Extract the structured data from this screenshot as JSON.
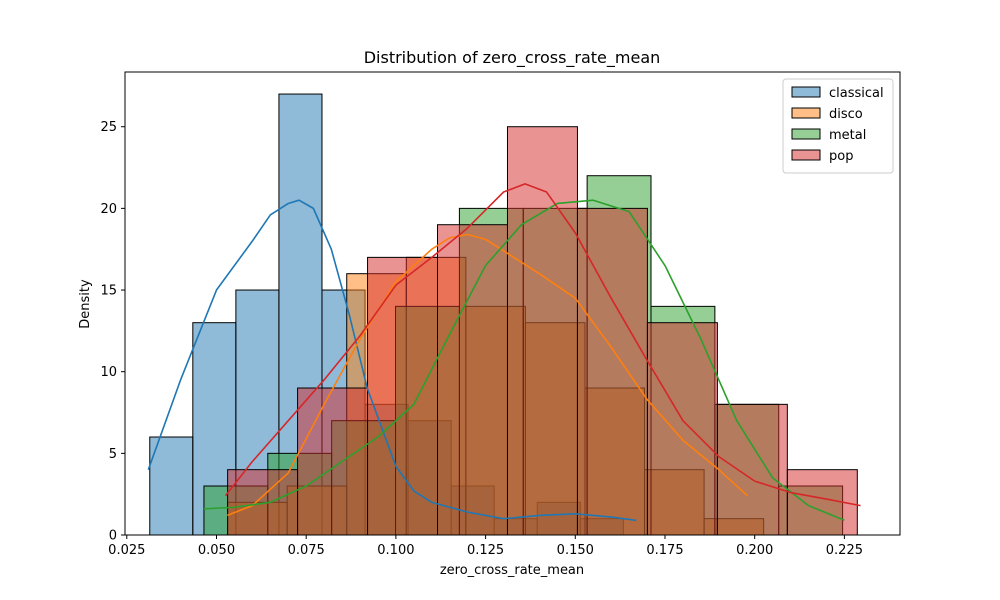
{
  "chart_data": {
    "type": "histogram",
    "title": "Distribution of zero_cross_rate_mean",
    "xlabel": "zero_cross_rate_mean",
    "ylabel": "Density",
    "xlim": [
      0.0245,
      0.2405
    ],
    "ylim": [
      0,
      28.35
    ],
    "xticks": [
      0.025,
      0.05,
      0.075,
      0.1,
      0.125,
      0.15,
      0.175,
      0.2,
      0.225
    ],
    "xtick_labels": [
      "0.025",
      "0.050",
      "0.075",
      "0.100",
      "0.125",
      "0.150",
      "0.175",
      "0.200",
      "0.225"
    ],
    "yticks": [
      0,
      5,
      10,
      15,
      20,
      25
    ],
    "ytick_labels": [
      "0",
      "5",
      "10",
      "15",
      "20",
      "25"
    ],
    "grid": false,
    "legend": "top-right",
    "series": [
      {
        "name": "classical",
        "color": "#1f77b4",
        "bin_edges": [
          0.0314,
          0.0434,
          0.0554,
          0.0674,
          0.0794,
          0.0914,
          0.1034,
          0.1154,
          0.1274,
          0.1394,
          0.1514,
          0.1634
        ],
        "counts": [
          6,
          13,
          15,
          27,
          15,
          8,
          7,
          3,
          1,
          2,
          1
        ],
        "kde": {
          "x": [
            0.031,
            0.04,
            0.05,
            0.06,
            0.065,
            0.07,
            0.073,
            0.077,
            0.082,
            0.087,
            0.092,
            0.1,
            0.105,
            0.11,
            0.12,
            0.13,
            0.14,
            0.15,
            0.16,
            0.167
          ],
          "y": [
            4.0,
            9.5,
            15.0,
            18.0,
            19.6,
            20.3,
            20.5,
            20.0,
            17.5,
            13.5,
            9.0,
            4.2,
            2.7,
            2.0,
            1.4,
            1.0,
            1.2,
            1.3,
            1.1,
            0.9
          ]
        }
      },
      {
        "name": "disco",
        "color": "#ff7f0e",
        "bin_edges": [
          0.0531,
          0.0697,
          0.0863,
          0.1029,
          0.1195,
          0.1361,
          0.1527,
          0.1693,
          0.1859,
          0.2025
        ],
        "counts": [
          2,
          3,
          16,
          17,
          14,
          13,
          9,
          4,
          1
        ],
        "kde": {
          "x": [
            0.053,
            0.06,
            0.07,
            0.08,
            0.09,
            0.1,
            0.11,
            0.115,
            0.12,
            0.125,
            0.13,
            0.14,
            0.15,
            0.16,
            0.17,
            0.18,
            0.19,
            0.198
          ],
          "y": [
            1.2,
            1.8,
            3.8,
            8.0,
            12.0,
            15.5,
            17.5,
            18.2,
            18.4,
            18.1,
            17.4,
            16.0,
            14.5,
            11.5,
            8.3,
            5.8,
            4.0,
            2.4
          ]
        }
      },
      {
        "name": "metal",
        "color": "#2ca02c",
        "bin_edges": [
          0.0465,
          0.0643,
          0.0821,
          0.0999,
          0.1177,
          0.1355,
          0.1533,
          0.1711,
          0.1889,
          0.2067,
          0.2245
        ],
        "counts": [
          3,
          5,
          7,
          14,
          20,
          20,
          22,
          14,
          8,
          3
        ],
        "kde": {
          "x": [
            0.0465,
            0.055,
            0.065,
            0.075,
            0.085,
            0.095,
            0.105,
            0.115,
            0.125,
            0.135,
            0.145,
            0.155,
            0.165,
            0.175,
            0.185,
            0.195,
            0.205,
            0.215,
            0.225
          ],
          "y": [
            1.6,
            1.7,
            2.0,
            3.0,
            4.5,
            6.0,
            8.0,
            12.3,
            16.5,
            19.0,
            20.3,
            20.5,
            19.8,
            16.5,
            12.0,
            7.0,
            3.5,
            1.8,
            0.9
          ]
        }
      },
      {
        "name": "pop",
        "color": "#d62728",
        "bin_edges": [
          0.0531,
          0.0726,
          0.0921,
          0.1116,
          0.1311,
          0.1506,
          0.1701,
          0.1896,
          0.2091,
          0.2286
        ],
        "counts": [
          4,
          9,
          17,
          19,
          25,
          20,
          13,
          8,
          4
        ],
        "kde": {
          "x": [
            0.0525,
            0.06,
            0.07,
            0.08,
            0.09,
            0.1,
            0.11,
            0.12,
            0.13,
            0.136,
            0.142,
            0.15,
            0.16,
            0.17,
            0.18,
            0.19,
            0.2,
            0.21,
            0.22,
            0.2295
          ],
          "y": [
            2.4,
            4.5,
            7.0,
            9.5,
            12.2,
            15.3,
            17.0,
            18.8,
            21.0,
            21.5,
            21.0,
            18.5,
            14.5,
            10.7,
            7.0,
            4.8,
            3.3,
            2.6,
            2.2,
            1.8
          ]
        }
      }
    ]
  }
}
